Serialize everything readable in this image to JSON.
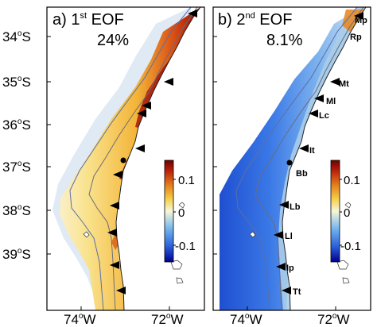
{
  "panels": [
    {
      "id": "a",
      "label": "a)",
      "eof_prefix": "1",
      "eof_sup": "st",
      "eof_suffix": "EOF",
      "variance": "24%",
      "sites": []
    },
    {
      "id": "b",
      "label": "b)",
      "eof_prefix": "2",
      "eof_sup": "nd",
      "eof_suffix": "EOF",
      "variance": "8.1%",
      "sites": [
        "Mp",
        "Rp",
        "Mt",
        "Ml",
        "Lc",
        "It",
        "Bb",
        "Lb",
        "Ll",
        "Ip",
        "Tt"
      ]
    }
  ],
  "y_axis": {
    "ticks": [
      {
        "value": "34",
        "sup": "o",
        "hemi": "S"
      },
      {
        "value": "35",
        "sup": "o",
        "hemi": "S"
      },
      {
        "value": "36",
        "sup": "o",
        "hemi": "S"
      },
      {
        "value": "37",
        "sup": "o",
        "hemi": "S"
      },
      {
        "value": "38",
        "sup": "o",
        "hemi": "S"
      },
      {
        "value": "39",
        "sup": "o",
        "hemi": "S"
      }
    ]
  },
  "x_axis": {
    "ticks": [
      {
        "value": "74",
        "sup": "o",
        "hemi": "W"
      },
      {
        "value": "72",
        "sup": "o",
        "hemi": "W"
      }
    ]
  },
  "colorbar": {
    "ticks": [
      "0.1",
      "0",
      "-0.1"
    ],
    "colors": [
      "#00008f",
      "#2b5fd9",
      "#6fb2ef",
      "#f7f7d8",
      "#f5cf4a",
      "#e47b1b",
      "#b8200c",
      "#6e0000"
    ]
  }
}
